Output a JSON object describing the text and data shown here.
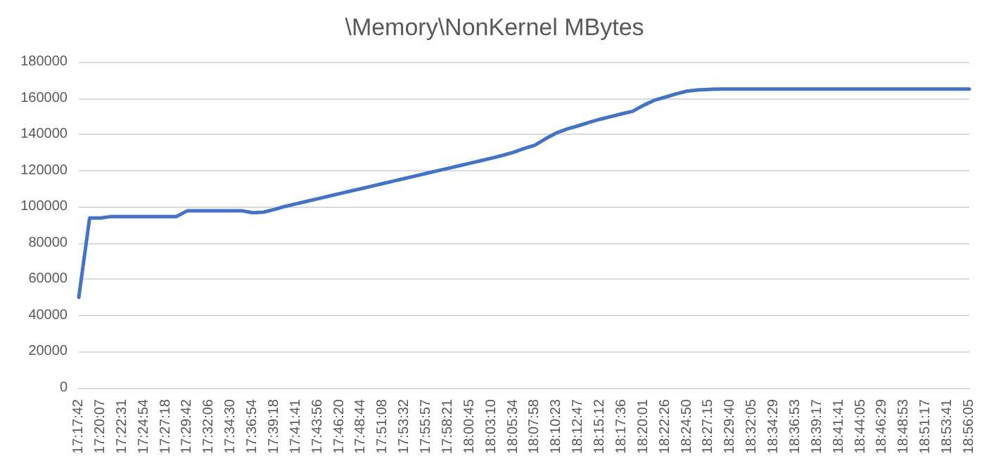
{
  "chart_data": {
    "type": "line",
    "title": "\\Memory\\NonKernel MBytes",
    "categories": [
      "17:17:42",
      null,
      "17:20:07",
      null,
      "17:22:31",
      null,
      "17:24:54",
      null,
      "17:27:18",
      null,
      "17:29:42",
      null,
      "17:32:06",
      null,
      "17:34:30",
      null,
      "17:36:54",
      null,
      "17:39:18",
      null,
      "17:41:41",
      null,
      "17:43:56",
      null,
      "17:46:20",
      null,
      "17:48:44",
      null,
      "17:51:08",
      null,
      "17:53:32",
      null,
      "17:55:57",
      null,
      "17:58:21",
      null,
      "18:00:45",
      null,
      "18:03:10",
      null,
      "18:05:34",
      null,
      "18:07:58",
      null,
      "18:10:23",
      null,
      "18:12:47",
      null,
      "18:15:12",
      null,
      "18:17:36",
      null,
      "18:20:01",
      null,
      "18:22:26",
      null,
      "18:24:50",
      null,
      "18:27:15",
      null,
      "18:29:40",
      null,
      "18:32:05",
      null,
      "18:34:29",
      null,
      "18:36:53",
      null,
      "18:39:17",
      null,
      "18:41:41",
      null,
      "18:44:05",
      null,
      "18:46:29",
      null,
      "18:48:53",
      null,
      "18:51:17",
      null,
      "18:53:41",
      null,
      "18:56:05"
    ],
    "series": [
      {
        "color": "#4472c4",
        "values": [
          50000,
          93800,
          93800,
          94600,
          94600,
          94600,
          94600,
          94600,
          94600,
          94600,
          97800,
          97800,
          97800,
          97800,
          97800,
          97800,
          96700,
          97000,
          98500,
          100200,
          101600,
          103000,
          104400,
          105800,
          107200,
          108600,
          110000,
          111400,
          112800,
          114200,
          115600,
          117000,
          118400,
          119800,
          121200,
          122600,
          124000,
          125400,
          126800,
          128300,
          130000,
          132100,
          134000,
          137600,
          140800,
          143000,
          144700,
          146600,
          148300,
          149800,
          151300,
          152700,
          156000,
          158800,
          160500,
          162300,
          163800,
          164500,
          164800,
          165000,
          165000,
          165000,
          165000,
          165000,
          165000,
          165000,
          165000,
          165000,
          165000,
          165000,
          165000,
          165000,
          165000,
          165000,
          165000,
          165000,
          165000,
          165000,
          165000,
          165000,
          165000,
          165000,
          165000
        ]
      }
    ],
    "ylim": [
      0,
      180000
    ],
    "yticks": [
      0,
      20000,
      40000,
      60000,
      80000,
      100000,
      120000,
      140000,
      160000,
      180000
    ],
    "grid": "y",
    "marker": "none",
    "line_style": "solid"
  }
}
